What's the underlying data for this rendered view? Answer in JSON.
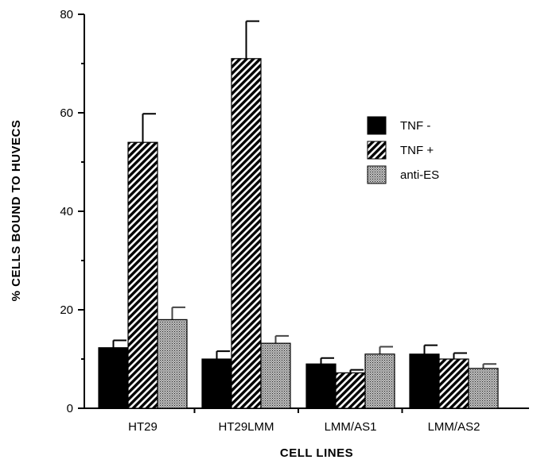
{
  "chart_data": {
    "type": "bar",
    "title": "",
    "xlabel": "CELL LINES",
    "ylabel": "% CELLS BOUND TO HUVECS",
    "ylim": [
      0,
      80
    ],
    "yticks": [
      0,
      20,
      40,
      60,
      80
    ],
    "categories": [
      "HT29",
      "HT29LMM",
      "LMM/AS1",
      "LMM/AS2"
    ],
    "series": [
      {
        "name": "TNF -",
        "values": [
          12.3,
          10.0,
          9.0,
          11.0
        ],
        "errors": [
          1.5,
          1.6,
          1.2,
          1.8
        ],
        "fill": "solid",
        "color": "#000000"
      },
      {
        "name": "TNF +",
        "values": [
          54.0,
          71.0,
          7.2,
          10.0
        ],
        "errors": [
          5.8,
          7.6,
          0.6,
          1.2
        ],
        "fill": "diagonal-hatch",
        "color": "#000000"
      },
      {
        "name": "anti-ES",
        "values": [
          18.0,
          13.2,
          11.0,
          8.1
        ],
        "errors": [
          2.5,
          1.5,
          1.5,
          0.9
        ],
        "fill": "stipple",
        "color": "#555555"
      }
    ],
    "legend_position": "top-right",
    "grid": false
  }
}
